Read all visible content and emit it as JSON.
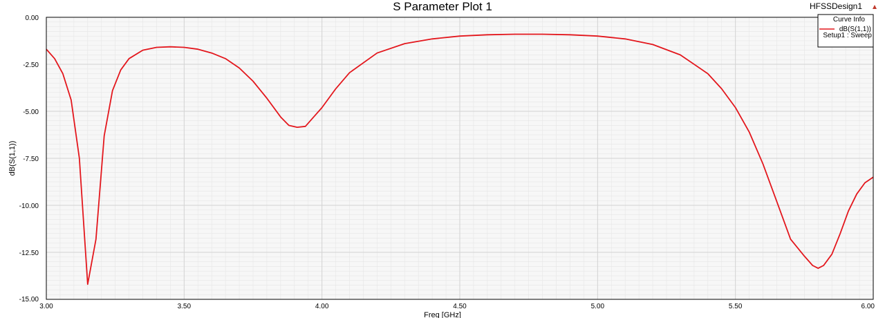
{
  "design_name": "HFSSDesign1",
  "colors": {
    "curve": "#e3161c",
    "grid": "#d2d2d2",
    "plot_bg": "#f7f7f7",
    "frame": "#000000",
    "design_marker": "#c0392b"
  },
  "legend": {
    "header": "Curve Info",
    "entry_name": "dB(S(1,1))",
    "entry_source": "Setup1 : Sweep",
    "placement": "top-right"
  },
  "chart_data": {
    "type": "line",
    "title": "S Parameter Plot 1",
    "xlabel": "Freq [GHz]",
    "ylabel": "dB(S(1,1))",
    "xlim": [
      3.0,
      6.0
    ],
    "ylim": [
      -15.0,
      0.0
    ],
    "grid": true,
    "x_ticks": [
      3.0,
      3.5,
      4.0,
      4.5,
      5.0,
      5.5,
      6.0
    ],
    "x_tick_labels": [
      "3.00",
      "3.50",
      "4.00",
      "4.50",
      "5.00",
      "5.50",
      "6.00"
    ],
    "y_ticks": [
      0.0,
      -2.5,
      -5.0,
      -7.5,
      -10.0,
      -12.5,
      -15.0
    ],
    "y_tick_labels": [
      "0.00",
      "-2.50",
      "-5.00",
      "-7.50",
      "-10.00",
      "-12.50",
      "-15.00"
    ],
    "series": [
      {
        "name": "dB(S(1,1))",
        "x": [
          3.0,
          3.03,
          3.06,
          3.09,
          3.12,
          3.15,
          3.18,
          3.21,
          3.24,
          3.27,
          3.3,
          3.35,
          3.4,
          3.45,
          3.5,
          3.55,
          3.6,
          3.65,
          3.7,
          3.75,
          3.8,
          3.85,
          3.88,
          3.91,
          3.94,
          3.97,
          4.0,
          4.05,
          4.1,
          4.2,
          4.3,
          4.4,
          4.5,
          4.6,
          4.7,
          4.8,
          4.9,
          5.0,
          5.1,
          5.2,
          5.3,
          5.4,
          5.45,
          5.5,
          5.55,
          5.6,
          5.65,
          5.7,
          5.75,
          5.78,
          5.8,
          5.82,
          5.85,
          5.88,
          5.91,
          5.94,
          5.97,
          6.0
        ],
        "y": [
          -1.7,
          -2.2,
          -3.0,
          -4.4,
          -7.5,
          -14.2,
          -11.8,
          -6.3,
          -3.9,
          -2.8,
          -2.2,
          -1.75,
          -1.6,
          -1.57,
          -1.6,
          -1.7,
          -1.9,
          -2.2,
          -2.7,
          -3.4,
          -4.3,
          -5.3,
          -5.75,
          -5.85,
          -5.8,
          -5.3,
          -4.8,
          -3.8,
          -2.95,
          -1.9,
          -1.4,
          -1.15,
          -1.0,
          -0.93,
          -0.9,
          -0.9,
          -0.93,
          -1.0,
          -1.15,
          -1.45,
          -2.0,
          -3.0,
          -3.8,
          -4.8,
          -6.1,
          -7.8,
          -9.8,
          -11.8,
          -12.7,
          -13.2,
          -13.35,
          -13.2,
          -12.6,
          -11.5,
          -10.3,
          -9.4,
          -8.8,
          -8.5
        ]
      }
    ]
  }
}
